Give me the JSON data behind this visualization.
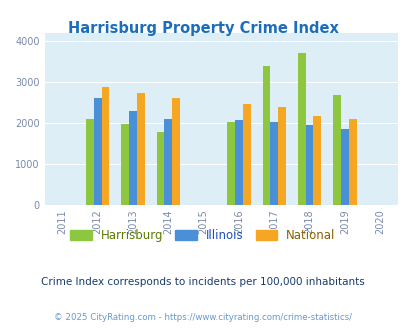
{
  "title": "Harrisburg Property Crime Index",
  "title_color": "#1a6ebd",
  "years": [
    2012,
    2013,
    2014,
    2016,
    2017,
    2018,
    2019
  ],
  "harrisburg": [
    2090,
    1975,
    1780,
    2020,
    3400,
    3720,
    2680
  ],
  "illinois": [
    2600,
    2280,
    2090,
    2060,
    2010,
    1950,
    1860
  ],
  "national": [
    2870,
    2740,
    2600,
    2460,
    2380,
    2180,
    2100
  ],
  "bar_colors": {
    "harrisburg": "#8dc63f",
    "illinois": "#4a90d9",
    "national": "#f5a623"
  },
  "xlim": [
    2010.5,
    2020.5
  ],
  "ylim": [
    0,
    4200
  ],
  "yticks": [
    0,
    1000,
    2000,
    3000,
    4000
  ],
  "xticks": [
    2011,
    2012,
    2013,
    2014,
    2015,
    2016,
    2017,
    2018,
    2019,
    2020
  ],
  "background_color": "#ddeef6",
  "legend_labels": [
    "Harrisburg",
    "Illinois",
    "National"
  ],
  "legend_label_colors": [
    "#5a7a00",
    "#1a4ebd",
    "#8a6000"
  ],
  "note": "Crime Index corresponds to incidents per 100,000 inhabitants",
  "note_color": "#1a3a6e",
  "footer": "© 2025 CityRating.com - https://www.cityrating.com/crime-statistics/",
  "footer_color": "#6699cc",
  "bar_width": 0.22
}
